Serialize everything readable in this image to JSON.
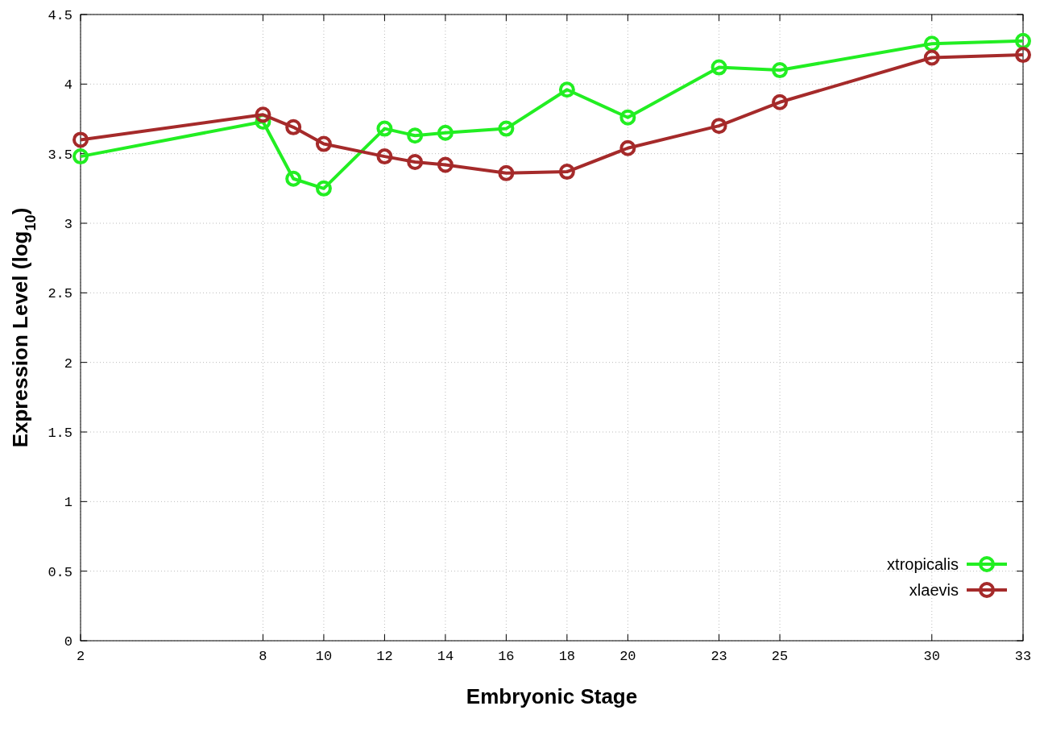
{
  "chart_data": {
    "type": "line",
    "xlabel": "Embryonic Stage",
    "ylabel": "Expression Level (log$_{10}$)",
    "x": [
      2,
      8,
      9,
      10,
      12,
      13,
      14,
      16,
      18,
      20,
      23,
      25,
      30,
      33
    ],
    "series": [
      {
        "name": "xtropicalis",
        "color": "#22ee22",
        "values": [
          3.48,
          3.73,
          3.32,
          3.25,
          3.68,
          3.63,
          3.65,
          3.68,
          3.96,
          3.76,
          4.12,
          4.1,
          4.29,
          4.31
        ]
      },
      {
        "name": "xlaevis",
        "color": "#a52a2a",
        "values": [
          3.6,
          3.78,
          3.69,
          3.57,
          3.48,
          3.44,
          3.42,
          3.36,
          3.37,
          3.54,
          3.7,
          3.87,
          4.19,
          4.21
        ]
      }
    ],
    "xlim": [
      2,
      33
    ],
    "xticks": [
      2,
      8,
      10,
      12,
      14,
      16,
      18,
      20,
      23,
      25,
      30,
      33
    ],
    "ylim": [
      0,
      4.5
    ],
    "yticks": [
      0,
      0.5,
      1,
      1.5,
      2,
      2.5,
      3,
      3.5,
      4,
      4.5
    ],
    "grid": true,
    "legend": "bottom right",
    "marker": "circle",
    "line_style": "solid"
  }
}
